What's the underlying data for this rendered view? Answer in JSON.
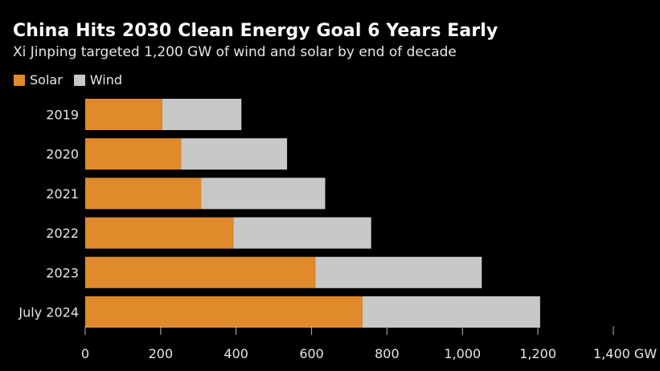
{
  "chart_data": {
    "type": "bar",
    "orientation": "horizontal",
    "stacked": true,
    "title": "China Hits 2030 Clean Energy Goal 6 Years Early",
    "subtitle": "Xi Jinping targeted 1,200 GW of wind and solar by end of decade",
    "categories": [
      "2019",
      "2020",
      "2021",
      "2022",
      "2023",
      "July 2024"
    ],
    "series": [
      {
        "name": "Solar",
        "color": "#e08a2c",
        "values": [
          204,
          254,
          307,
          393,
          610,
          735
        ]
      },
      {
        "name": "Wind",
        "color": "#c8c8c8",
        "values": [
          210,
          281,
          329,
          365,
          441,
          471
        ]
      }
    ],
    "xlim": [
      0,
      1400
    ],
    "xticks": [
      0,
      200,
      400,
      600,
      800,
      1000,
      1200,
      1400
    ],
    "xtick_labels": [
      "0",
      "200",
      "400",
      "600",
      "800",
      "1,000",
      "1,200",
      "1,400 GW"
    ],
    "legend_position": "top-left",
    "grid": false
  }
}
